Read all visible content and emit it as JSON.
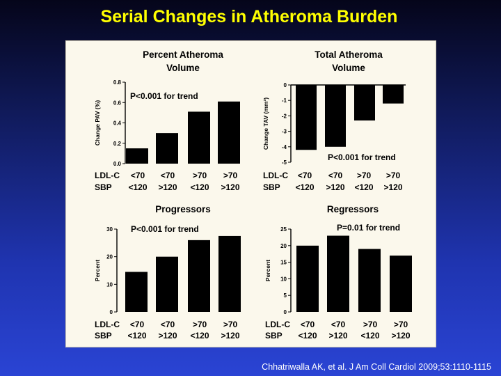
{
  "title": "Serial Changes in Atheroma Burden",
  "citation": "Chhatriwalla AK, et al. J Am Coll Cardiol 2009;53:1110-1115",
  "colors": {
    "title": "#ffff00",
    "bars": "#000000",
    "panel": "#fbf8ec"
  },
  "row_labels": {
    "ldl": "LDL-C",
    "sbp": "SBP"
  },
  "chart_data": [
    {
      "type": "bar",
      "title": "Percent Atheroma Volume",
      "ylabel": "Change PAV (%)",
      "annotation": "P<0.001 for trend",
      "ylim": [
        0,
        0.8
      ],
      "yticks": [
        "0.0",
        "0.2",
        "0.4",
        "0.6",
        "0.8"
      ],
      "categories": [
        {
          "ldl": "<70",
          "sbp": "<120"
        },
        {
          "ldl": "<70",
          "sbp": ">120"
        },
        {
          "ldl": ">70",
          "sbp": "<120"
        },
        {
          "ldl": ">70",
          "sbp": ">120"
        }
      ],
      "values": [
        0.15,
        0.3,
        0.51,
        0.61
      ]
    },
    {
      "type": "bar",
      "title": "Total Atheroma Volume",
      "ylabel": "Change TAV (mm³)",
      "annotation": "P<0.001 for trend",
      "ylim": [
        -5,
        0
      ],
      "yticks": [
        "0",
        "-1",
        "-2",
        "-3",
        "-4",
        "-5"
      ],
      "categories": [
        {
          "ldl": "<70",
          "sbp": "<120"
        },
        {
          "ldl": "<70",
          "sbp": ">120"
        },
        {
          "ldl": ">70",
          "sbp": "<120"
        },
        {
          "ldl": ">70",
          "sbp": ">120"
        }
      ],
      "values": [
        -4.2,
        -4.0,
        -2.3,
        -1.2
      ]
    },
    {
      "type": "bar",
      "title": "Progressors",
      "ylabel": "Percent",
      "annotation": "P<0.001 for trend",
      "ylim": [
        0,
        30
      ],
      "yticks": [
        "0",
        "10",
        "20",
        "30"
      ],
      "categories": [
        {
          "ldl": "<70",
          "sbp": "<120"
        },
        {
          "ldl": "<70",
          "sbp": ">120"
        },
        {
          "ldl": ">70",
          "sbp": "<120"
        },
        {
          "ldl": ">70",
          "sbp": ">120"
        }
      ],
      "values": [
        14.5,
        20.0,
        26.0,
        27.5
      ]
    },
    {
      "type": "bar",
      "title": "Regressors",
      "ylabel": "Percent",
      "annotation": "P=0.01 for trend",
      "ylim": [
        0,
        25
      ],
      "yticks": [
        "0",
        "5",
        "10",
        "15",
        "20",
        "25"
      ],
      "categories": [
        {
          "ldl": "<70",
          "sbp": "<120"
        },
        {
          "ldl": "<70",
          "sbp": ">120"
        },
        {
          "ldl": ">70",
          "sbp": "<120"
        },
        {
          "ldl": ">70",
          "sbp": ">120"
        }
      ],
      "values": [
        20.0,
        23.0,
        19.0,
        17.0
      ]
    }
  ]
}
